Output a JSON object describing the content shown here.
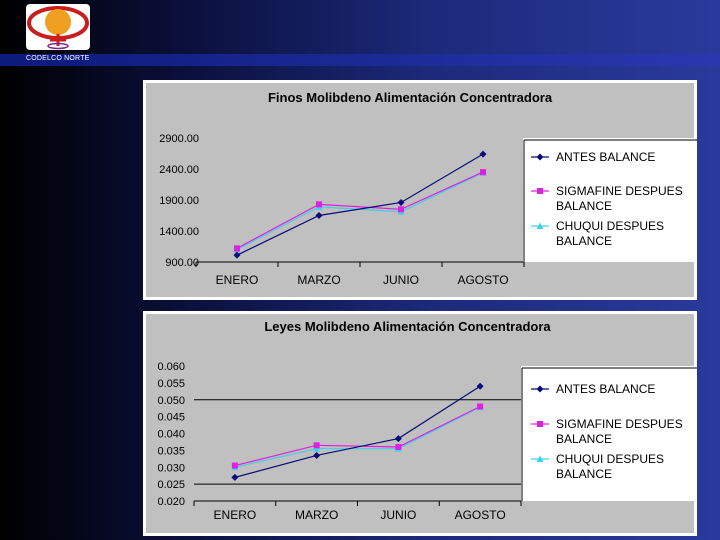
{
  "header": {
    "brand": "CODELCO NORTE"
  },
  "colors": {
    "antes": "#0a0a78",
    "sigmafine": "#e020e0",
    "chuqui": "#40d0e8",
    "plot_bg": "#c0c0c0"
  },
  "chart_data": [
    {
      "type": "line",
      "title": "Finos Molibdeno Alimentación Concentradora",
      "categories": [
        "ENERO",
        "MARZO",
        "JUNIO",
        "AGOSTO"
      ],
      "ytick_labels": [
        "2900.00",
        "2400.00",
        "1900.00",
        "1400.00",
        "900.00"
      ],
      "yticks": [
        2900,
        2400,
        1900,
        1400,
        900
      ],
      "ylim": [
        900,
        2900
      ],
      "grid": false,
      "legend_position": "right",
      "series": [
        {
          "name": "ANTES BALANCE",
          "color": "#0a0a78",
          "marker": "diamond",
          "values": [
            1010,
            1650,
            1860,
            2640
          ]
        },
        {
          "name": "SIGMAFINE DESPUES BALANCE",
          "color": "#e020e0",
          "marker": "square",
          "values": [
            1120,
            1830,
            1750,
            2350
          ]
        },
        {
          "name": "CHUQUI DESPUES BALANCE",
          "color": "#40d0e8",
          "marker": "triangle",
          "values": [
            1100,
            1790,
            1710,
            2340
          ]
        }
      ]
    },
    {
      "type": "line",
      "title": "Leyes Molibdeno Alimentación Concentradora",
      "categories": [
        "ENERO",
        "MARZO",
        "JUNIO",
        "AGOSTO"
      ],
      "ytick_labels": [
        "0.060",
        "0.055",
        "0.050",
        "0.045",
        "0.040",
        "0.035",
        "0.030",
        "0.025",
        "0.020"
      ],
      "yticks": [
        0.06,
        0.055,
        0.05,
        0.045,
        0.04,
        0.035,
        0.03,
        0.025,
        0.02
      ],
      "ylim": [
        0.02,
        0.06
      ],
      "grid": false,
      "reference_lines": [
        0.05,
        0.025
      ],
      "legend_position": "right",
      "series": [
        {
          "name": "ANTES BALANCE",
          "color": "#0a0a78",
          "marker": "diamond",
          "values": [
            0.027,
            0.0335,
            0.0385,
            0.054
          ]
        },
        {
          "name": "SIGMAFINE DESPUES BALANCE",
          "color": "#e020e0",
          "marker": "square",
          "values": [
            0.0305,
            0.0365,
            0.036,
            0.048
          ]
        },
        {
          "name": "CHUQUI DESPUES BALANCE",
          "color": "#40d0e8",
          "marker": "triangle",
          "values": [
            0.03,
            0.0355,
            0.0355,
            0.0478
          ]
        }
      ]
    }
  ]
}
